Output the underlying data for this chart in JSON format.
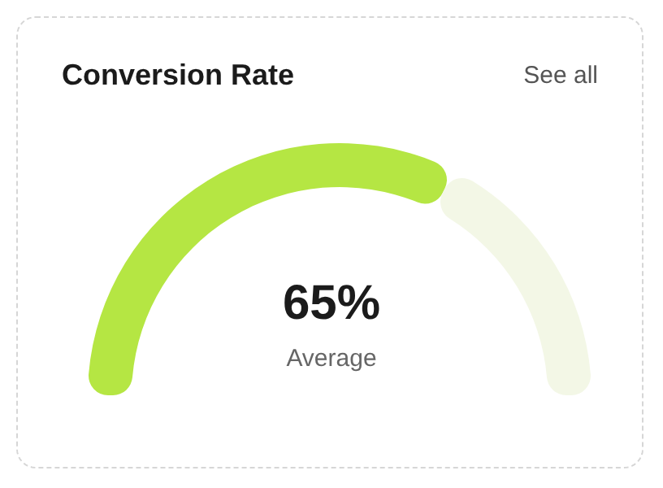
{
  "chart_data": {
    "type": "donut",
    "title": "Conversion Rate",
    "categories": [
      null,
      null
    ],
    "values": [
      65,
      35
    ],
    "colors": [
      "#b5e643",
      "#f3f7e6"
    ],
    "value_labels": [
      "65%",
      null
    ],
    "annotations": [
      "Average",
      "See all"
    ],
    "legend": false
  }
}
